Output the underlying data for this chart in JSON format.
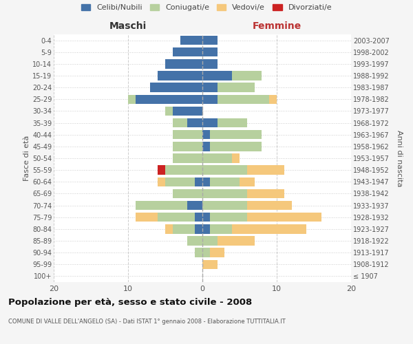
{
  "age_groups": [
    "100+",
    "95-99",
    "90-94",
    "85-89",
    "80-84",
    "75-79",
    "70-74",
    "65-69",
    "60-64",
    "55-59",
    "50-54",
    "45-49",
    "40-44",
    "35-39",
    "30-34",
    "25-29",
    "20-24",
    "15-19",
    "10-14",
    "5-9",
    "0-4"
  ],
  "birth_years": [
    "≤ 1907",
    "1908-1912",
    "1913-1917",
    "1918-1922",
    "1923-1927",
    "1928-1932",
    "1933-1937",
    "1938-1942",
    "1943-1947",
    "1948-1952",
    "1953-1957",
    "1958-1962",
    "1963-1967",
    "1968-1972",
    "1973-1977",
    "1978-1982",
    "1983-1987",
    "1988-1992",
    "1993-1997",
    "1998-2002",
    "2003-2007"
  ],
  "male": {
    "celibi": [
      0,
      0,
      0,
      0,
      1,
      1,
      2,
      0,
      1,
      0,
      0,
      0,
      0,
      2,
      4,
      9,
      7,
      6,
      5,
      4,
      3
    ],
    "coniugati": [
      0,
      0,
      1,
      2,
      3,
      5,
      7,
      4,
      4,
      5,
      4,
      4,
      4,
      2,
      1,
      1,
      0,
      0,
      0,
      0,
      0
    ],
    "vedovi": [
      0,
      0,
      0,
      0,
      1,
      3,
      0,
      0,
      1,
      0,
      0,
      0,
      0,
      0,
      0,
      0,
      0,
      0,
      0,
      0,
      0
    ],
    "divorziati": [
      0,
      0,
      0,
      0,
      0,
      0,
      0,
      0,
      0,
      1,
      0,
      0,
      0,
      0,
      0,
      0,
      0,
      0,
      0,
      0,
      0
    ]
  },
  "female": {
    "celibi": [
      0,
      0,
      0,
      0,
      1,
      1,
      0,
      0,
      1,
      0,
      0,
      1,
      1,
      2,
      0,
      2,
      2,
      4,
      2,
      2,
      2
    ],
    "coniugati": [
      0,
      0,
      1,
      2,
      3,
      5,
      6,
      6,
      4,
      6,
      4,
      7,
      7,
      4,
      0,
      7,
      5,
      4,
      0,
      0,
      0
    ],
    "vedovi": [
      0,
      2,
      2,
      5,
      10,
      10,
      6,
      5,
      2,
      5,
      1,
      0,
      0,
      0,
      0,
      1,
      0,
      0,
      0,
      0,
      0
    ],
    "divorziati": [
      0,
      0,
      0,
      0,
      0,
      0,
      0,
      0,
      0,
      0,
      0,
      0,
      0,
      0,
      0,
      0,
      0,
      0,
      0,
      0,
      0
    ]
  },
  "colors": {
    "celibi": "#4472a8",
    "coniugati": "#b7d09e",
    "vedovi": "#f5c87c",
    "divorziati": "#cc2222"
  },
  "xlim": 20,
  "title": "Popolazione per età, sesso e stato civile - 2008",
  "subtitle": "COMUNE DI VALLE DELL'ANGELO (SA) - Dati ISTAT 1° gennaio 2008 - Elaborazione TUTTITALIA.IT",
  "ylabel_left": "Fasce di età",
  "ylabel_right": "Anni di nascita",
  "xlabel_left": "Maschi",
  "xlabel_right": "Femmine",
  "legend_labels": [
    "Celibi/Nubili",
    "Coniugati/e",
    "Vedovi/e",
    "Divorziati/e"
  ],
  "bg_color": "#f5f5f5",
  "plot_bg_color": "#ffffff"
}
